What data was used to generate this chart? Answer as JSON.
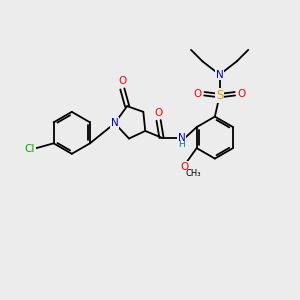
{
  "background_color": "#ececec",
  "atom_colors": {
    "C": "#000000",
    "N": "#0000cc",
    "O": "#ff0000",
    "S": "#ccaa00",
    "Cl": "#00aa00",
    "H": "#000000",
    "NH": "#008080"
  },
  "font_size": 7.5,
  "figsize": [
    3.0,
    3.0
  ],
  "dpi": 100
}
